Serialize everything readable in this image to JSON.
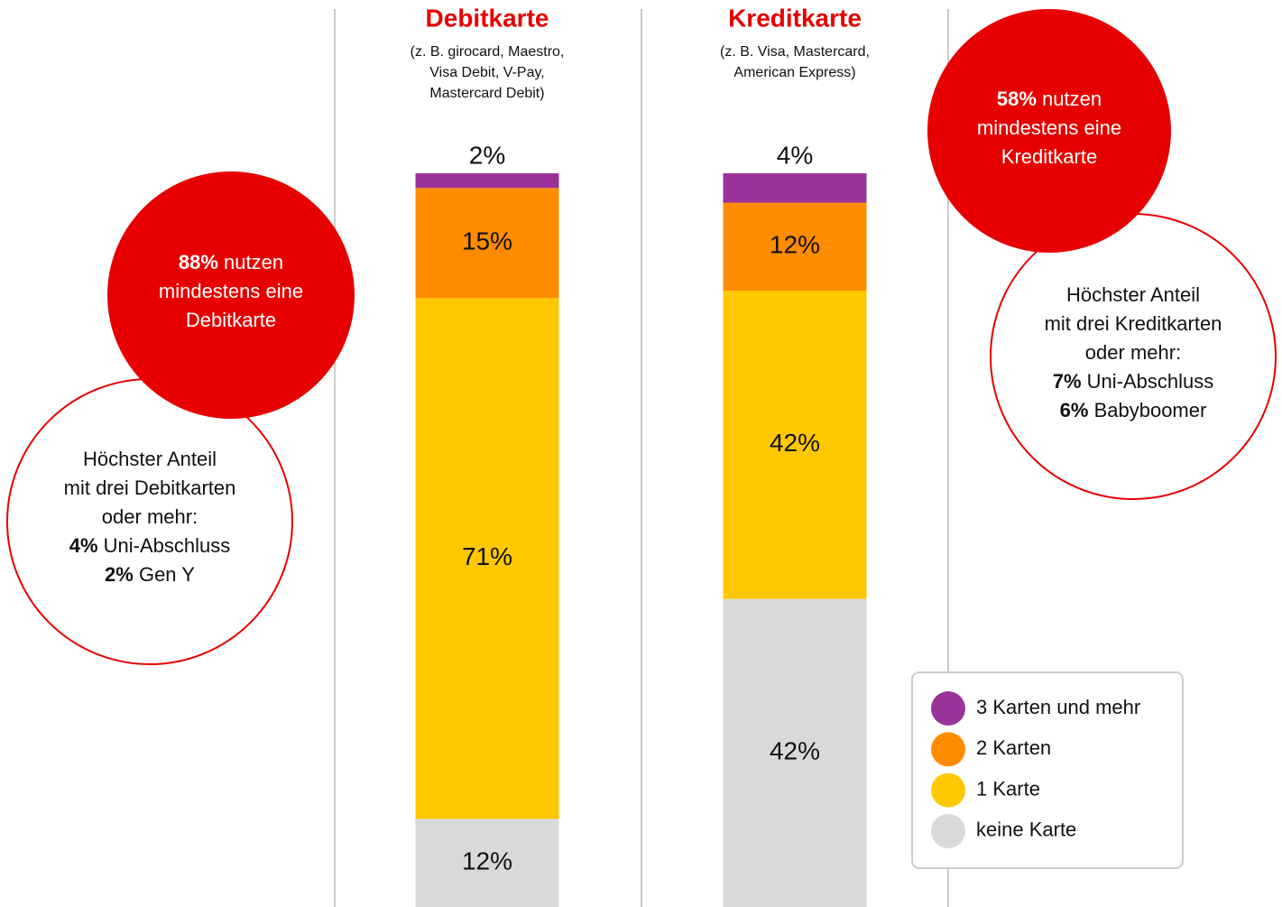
{
  "chart_data": {
    "type": "stacked_bar",
    "categories": [
      "Debitkarte",
      "Kreditkarte"
    ],
    "category_notes": [
      [
        "(z. B. girocard, Maestro,",
        "Visa Debit, V-Pay,",
        "Mastercard Debit)"
      ],
      [
        "(z. B. Visa, Mastercard,",
        "American Express)"
      ]
    ],
    "ylim": [
      0,
      100
    ],
    "series": [
      {
        "name": "3 Karten und mehr",
        "color": "#993399",
        "values": [
          2,
          4
        ],
        "value_labels": [
          "2%",
          "4%"
        ]
      },
      {
        "name": "2 Karten",
        "color": "#ff8c00",
        "values": [
          15,
          12
        ],
        "value_labels": [
          "15%",
          "12%"
        ]
      },
      {
        "name": "1 Karte",
        "color": "#ffc800",
        "values": [
          71,
          42
        ],
        "value_labels": [
          "71%",
          "42%"
        ]
      },
      {
        "name": "keine Karte",
        "color": "#d9d9d9",
        "values": [
          12,
          42
        ],
        "value_labels": [
          "12%",
          "42%"
        ]
      }
    ],
    "legend": "bottom-right",
    "annotations": [
      {
        "highlight": "88%",
        "lines": [
          " nutzen",
          "mindestens eine",
          "Debitkarte"
        ],
        "detail": {
          "lines": [
            "Höchster Anteil",
            "mit drei Debitkarten",
            "oder mehr:"
          ],
          "items": [
            {
              "value": "4%",
              "text": " Uni-Abschluss"
            },
            {
              "value": "2%",
              "text": " Gen Y"
            }
          ]
        }
      },
      {
        "highlight": "58%",
        "lines": [
          " nutzen",
          "mindestens eine",
          "Kreditkarte"
        ],
        "detail": {
          "lines": [
            "Höchster Anteil",
            "mit drei Kreditkarten",
            "oder mehr:"
          ],
          "items": [
            {
              "value": "7%",
              "text": " Uni-Abschluss"
            },
            {
              "value": "6%",
              "text": " Babyboomer"
            }
          ]
        }
      }
    ]
  }
}
